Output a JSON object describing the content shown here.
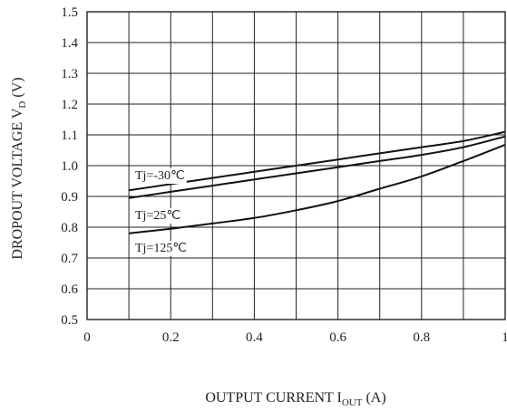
{
  "chart_data": {
    "type": "line",
    "title": "",
    "xlabel": {
      "main": "OUTPUT CURRENT  I",
      "sub": "OUT",
      "unit": " (A)"
    },
    "ylabel": {
      "main": "DROPOUT VOLTAGE  V",
      "sub": "D",
      "unit": " (V)"
    },
    "xlim": [
      0,
      1
    ],
    "ylim": [
      0.5,
      1.5
    ],
    "xticks": [
      0,
      0.1,
      0.2,
      0.3,
      0.4,
      0.5,
      0.6,
      0.7,
      0.8,
      0.9,
      1.0
    ],
    "yticks": [
      0.5,
      0.6,
      0.7,
      0.8,
      0.9,
      1.0,
      1.1,
      1.2,
      1.3,
      1.4,
      1.5
    ],
    "xtick_labels": [
      "0",
      "0.2",
      "0.4",
      "0.6",
      "0.8",
      "1"
    ],
    "ytick_labels": [
      "0.5",
      "0.6",
      "0.7",
      "0.8",
      "0.9",
      "1.0",
      "1.1",
      "1.2",
      "1.3",
      "1.4",
      "1.5"
    ],
    "grid": true,
    "series": [
      {
        "name": "Tj=-30℃",
        "x": [
          0.1,
          0.2,
          0.3,
          0.4,
          0.5,
          0.6,
          0.7,
          0.8,
          0.9,
          1.0
        ],
        "y": [
          0.92,
          0.94,
          0.96,
          0.98,
          1.0,
          1.02,
          1.04,
          1.06,
          1.08,
          1.11
        ]
      },
      {
        "name": "Tj=25℃",
        "x": [
          0.1,
          0.2,
          0.3,
          0.4,
          0.5,
          0.6,
          0.7,
          0.8,
          0.9,
          1.0
        ],
        "y": [
          0.895,
          0.915,
          0.935,
          0.955,
          0.975,
          0.995,
          1.015,
          1.035,
          1.06,
          1.095
        ]
      },
      {
        "name": "Tj=125℃",
        "x": [
          0.1,
          0.2,
          0.3,
          0.4,
          0.5,
          0.6,
          0.7,
          0.8,
          0.9,
          1.0
        ],
        "y": [
          0.78,
          0.795,
          0.812,
          0.83,
          0.855,
          0.885,
          0.925,
          0.965,
          1.015,
          1.068
        ]
      }
    ]
  }
}
